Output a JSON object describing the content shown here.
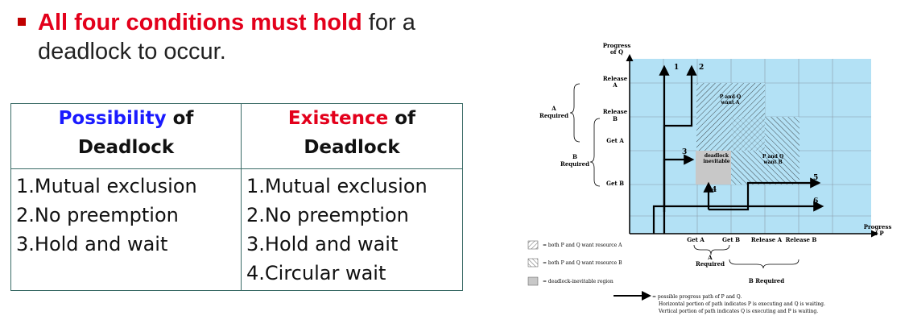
{
  "heading": {
    "emphasis": "All four conditions must hold",
    "rest_line1": " for a",
    "line2": "deadlock to occur."
  },
  "table": {
    "col1_highlight": "Possibility",
    "col1_rest": " of",
    "col1_line2": "Deadlock",
    "col2_highlight": "Existence",
    "col2_rest": " of",
    "col2_line2": "Deadlock",
    "col1_items": [
      "1.Mutual exclusion",
      "2.No preemption",
      "3.Hold and wait"
    ],
    "col2_items": [
      "1.Mutual exclusion",
      "2.No preemption",
      "3.Hold and wait",
      "4.Circular wait"
    ]
  },
  "diagram": {
    "y_axis_title_1": "Progress",
    "y_axis_title_2": "of Q",
    "x_axis_title_1": "Progress",
    "x_axis_title_2": "of P",
    "y_release_a_1": "Release",
    "y_release_a_2": "A",
    "y_release_b_1": "Release",
    "y_release_b_2": "B",
    "y_get_a": "Get A",
    "y_get_b": "Get B",
    "a_required_1": "A",
    "a_required_2": "Required",
    "b_required_1": "B",
    "b_required_2": "Required",
    "x_get_a": "Get A",
    "x_get_b": "Get B",
    "x_release_a": "Release A",
    "x_release_b": "Release B",
    "x_a_required_1": "A",
    "x_a_required_2": "Required",
    "x_b_required": "B Required",
    "region_pq_a_1": "P and Q",
    "region_pq_a_2": "want A",
    "region_pq_b_1": "P and Q",
    "region_pq_b_2": "want B",
    "region_deadlock_1": "deadlock",
    "region_deadlock_2": "inevitable",
    "path_labels": [
      "1",
      "2",
      "3",
      "4",
      "5",
      "6"
    ],
    "legend_a": "= both P and Q want resource A",
    "legend_b": "= both P and Q want resource B",
    "legend_deadlock": "= deadlock-inevitable region",
    "legend_path_1": "= possible progress path of P and Q.",
    "legend_path_2": "Horizontal portion of path indicates P is executing and Q is waiting.",
    "legend_path_3": "Vertical portion of path indicates Q is executing and P is waiting."
  },
  "colors": {
    "emphasis_red": "#e3001b",
    "possibility_blue": "#1a1aff",
    "table_border": "#3a6b66",
    "grid_fill": "#b3e1f5",
    "deadlock_gray": "#c8c8c8"
  }
}
